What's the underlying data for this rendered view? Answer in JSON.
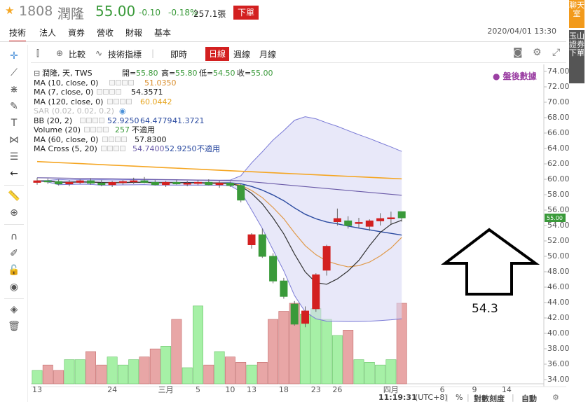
{
  "header": {
    "code": "1808",
    "name": "潤隆",
    "price": "55.00",
    "change": "-0.10",
    "change_pct": "-0.18%",
    "volume": "257.1張",
    "order_btn": "下單"
  },
  "tabs": [
    {
      "label": "技術"
    },
    {
      "label": "法人"
    },
    {
      "label": "資券"
    },
    {
      "label": "營收"
    },
    {
      "label": "財報"
    },
    {
      "label": "基本"
    }
  ],
  "datetime": "2020/04/01 13:30",
  "toolbar": {
    "compare": "比較",
    "indicators": "技術指標",
    "intraday": "即時",
    "daily": "日線",
    "weekly": "週線",
    "monthly": "月線"
  },
  "side": {
    "chat": "聊天室",
    "broker": "玉山證券下單"
  },
  "legend": {
    "title": "潤隆, 天, TWS",
    "ohlc": {
      "open_label": "開=",
      "open": "55.80",
      "high_label": "高=",
      "high": "55.80",
      "low_label": "低=",
      "low": "54.50",
      "close_label": "收=",
      "close": "55.00"
    },
    "ma10": {
      "label": "MA (10, close, 0)",
      "value": "51.0350"
    },
    "ma7": {
      "label": "MA (7, close, 0)",
      "value": "54.3571"
    },
    "ma120": {
      "label": "MA (120, close, 0)",
      "value": "60.0442"
    },
    "sar": {
      "label": "SAR (0.02, 0.02, 0.2)"
    },
    "bb": {
      "label": "BB (20, 2)",
      "v1": "52.9250",
      "v2": "64.4779",
      "v3": "41.3721"
    },
    "volume": {
      "label": "Volume (20)",
      "value": "257",
      "na": "不適用"
    },
    "ma60": {
      "label": "MA (60, close, 0)",
      "value": "57.8300"
    },
    "macross": {
      "label": "MA Cross (5, 20)",
      "v1": "54.7400",
      "v2": "52.9250",
      "na": "不適用"
    }
  },
  "after_hours": "盤後數據",
  "annotation": "54.3",
  "last_price_tag": "55.00",
  "status": {
    "time": "11:19:31",
    "tz": "(UTC+8)",
    "pct": "%",
    "log": "對數刻度",
    "auto": "自動"
  },
  "colors": {
    "up": "#d32020",
    "down": "#3a9a3a",
    "bb": "#7a7ad6",
    "ma10": "#e09a4b",
    "ma7": "#333333",
    "ma120": "#f5a623",
    "ma60": "#6a5aa8",
    "after": "#9b3fa3"
  },
  "chart_data": {
    "type": "candlestick",
    "x": [
      "2/12",
      "2/13",
      "2/14",
      "2/17",
      "2/18",
      "2/19",
      "2/20",
      "2/21",
      "2/24",
      "2/25",
      "2/26",
      "2/27",
      "3/2",
      "3/3",
      "3/4",
      "3/5",
      "3/6",
      "3/9",
      "3/10",
      "3/11",
      "3/12",
      "3/13",
      "3/16",
      "3/17",
      "3/18",
      "3/19",
      "3/20",
      "3/23",
      "3/24",
      "3/25",
      "3/26",
      "3/27",
      "3/30",
      "3/31",
      "4/1"
    ],
    "x_tick_labels": [
      "13",
      "24",
      "三月",
      "5",
      "10",
      "13",
      "18",
      "23",
      "26",
      "四月",
      "6",
      "9",
      "14"
    ],
    "y_tick_labels": [
      "74.00",
      "72.00",
      "70.00",
      "68.00",
      "66.00",
      "64.00",
      "62.00",
      "60.00",
      "58.00",
      "56.00",
      "54.00",
      "52.00",
      "50.00",
      "48.00",
      "46.00",
      "44.00",
      "42.00",
      "40.00",
      "38.00",
      "36.00",
      "34.00"
    ],
    "ylim": [
      33.4,
      74.7
    ],
    "ohlc": [
      [
        59.6,
        60.2,
        59.3,
        59.8
      ],
      [
        59.8,
        60.1,
        59.4,
        59.7
      ],
      [
        59.7,
        60.0,
        59.2,
        59.4
      ],
      [
        59.4,
        59.9,
        59.1,
        59.6
      ],
      [
        59.6,
        60.0,
        59.4,
        59.8
      ],
      [
        59.8,
        60.1,
        59.3,
        59.5
      ],
      [
        59.5,
        59.9,
        59.1,
        59.3
      ],
      [
        59.3,
        59.8,
        59.0,
        59.6
      ],
      [
        59.6,
        59.9,
        59.3,
        59.7
      ],
      [
        59.7,
        60.2,
        59.4,
        59.8
      ],
      [
        59.8,
        60.3,
        59.5,
        59.6
      ],
      [
        59.6,
        59.9,
        59.2,
        59.3
      ],
      [
        59.3,
        59.8,
        59.0,
        59.6
      ],
      [
        59.6,
        59.9,
        59.3,
        59.4
      ],
      [
        59.4,
        59.8,
        59.1,
        59.5
      ],
      [
        59.5,
        59.9,
        59.2,
        59.6
      ],
      [
        59.6,
        60.0,
        59.2,
        59.3
      ],
      [
        59.3,
        59.8,
        58.9,
        59.5
      ],
      [
        59.5,
        59.7,
        59.0,
        59.2
      ],
      [
        59.2,
        59.4,
        57.0,
        57.3
      ],
      [
        51.5,
        53.0,
        51.0,
        52.8
      ],
      [
        52.8,
        53.6,
        49.8,
        50.0
      ],
      [
        50.0,
        50.4,
        46.5,
        46.8
      ],
      [
        46.8,
        47.2,
        44.5,
        44.8
      ],
      [
        43.8,
        44.2,
        41.0,
        41.2
      ],
      [
        41.3,
        43.5,
        40.8,
        42.9
      ],
      [
        43.2,
        47.8,
        42.8,
        47.6
      ],
      [
        48.2,
        51.5,
        47.5,
        51.3
      ],
      [
        54.5,
        56.2,
        54.0,
        54.9
      ],
      [
        54.6,
        55.2,
        53.6,
        54.0
      ],
      [
        54.3,
        55.0,
        53.7,
        54.4
      ],
      [
        53.9,
        54.8,
        53.3,
        54.6
      ],
      [
        54.6,
        55.6,
        54.0,
        54.9
      ],
      [
        54.9,
        55.8,
        54.2,
        55.0
      ],
      [
        55.8,
        55.8,
        54.5,
        55.0
      ]
    ],
    "volume": [
      25,
      35,
      25,
      45,
      45,
      60,
      35,
      50,
      35,
      45,
      50,
      65,
      70,
      120,
      30,
      145,
      35,
      60,
      50,
      40,
      35,
      40,
      120,
      135,
      150,
      130,
      140,
      120,
      90,
      100,
      45,
      40,
      35,
      45,
      257
    ]
  }
}
